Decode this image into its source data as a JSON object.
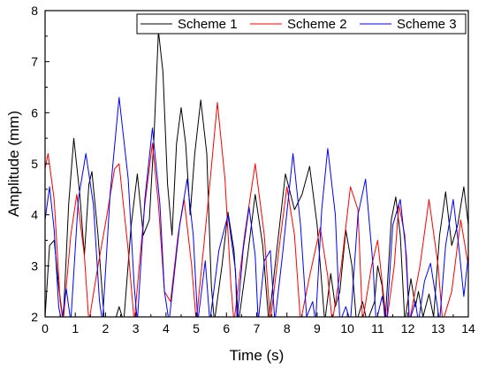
{
  "chart_data": {
    "type": "line",
    "title": "",
    "xlabel": "Time (s)",
    "ylabel": "Amplitude (mm)",
    "xlim": [
      0,
      14
    ],
    "ylim": [
      2,
      8
    ],
    "x_ticks": [
      "0",
      "1",
      "2",
      "3",
      "4",
      "5",
      "6",
      "7",
      "8",
      "9",
      "10",
      "11",
      "12",
      "13",
      "14"
    ],
    "y_ticks": [
      "2",
      "3",
      "4",
      "5",
      "6",
      "7",
      "8"
    ],
    "grid": false,
    "legend": "top-right",
    "series": [
      {
        "name": "Scheme 1",
        "color": "#000000",
        "points": [
          [
            0.0,
            2.0
          ],
          [
            0.15,
            3.4
          ],
          [
            0.3,
            3.5
          ],
          [
            0.45,
            2.6
          ],
          [
            0.6,
            1.9
          ],
          [
            0.78,
            4.2
          ],
          [
            0.95,
            5.5
          ],
          [
            1.15,
            4.4
          ],
          [
            1.3,
            3.2
          ],
          [
            1.45,
            4.6
          ],
          [
            1.55,
            4.85
          ],
          [
            1.75,
            3.6
          ],
          [
            1.95,
            2.0
          ],
          [
            2.3,
            1.9
          ],
          [
            2.45,
            2.2
          ],
          [
            2.6,
            1.9
          ],
          [
            2.85,
            3.8
          ],
          [
            3.05,
            4.8
          ],
          [
            3.25,
            3.6
          ],
          [
            3.45,
            3.9
          ],
          [
            3.6,
            5.5
          ],
          [
            3.75,
            7.6
          ],
          [
            3.9,
            6.8
          ],
          [
            4.05,
            4.6
          ],
          [
            4.2,
            3.6
          ],
          [
            4.35,
            5.4
          ],
          [
            4.5,
            6.1
          ],
          [
            4.65,
            5.4
          ],
          [
            4.8,
            4.0
          ],
          [
            4.95,
            5.2
          ],
          [
            5.15,
            6.25
          ],
          [
            5.35,
            5.2
          ],
          [
            5.5,
            2.6
          ],
          [
            5.6,
            1.9
          ],
          [
            5.85,
            3.0
          ],
          [
            6.05,
            4.05
          ],
          [
            6.25,
            3.3
          ],
          [
            6.4,
            1.9
          ],
          [
            6.7,
            3.2
          ],
          [
            6.95,
            4.4
          ],
          [
            7.2,
            3.4
          ],
          [
            7.4,
            1.9
          ],
          [
            7.7,
            3.5
          ],
          [
            7.95,
            4.8
          ],
          [
            8.25,
            4.1
          ],
          [
            8.5,
            4.4
          ],
          [
            8.75,
            4.95
          ],
          [
            9.0,
            3.8
          ],
          [
            9.25,
            1.9
          ],
          [
            9.45,
            2.85
          ],
          [
            9.6,
            2.2
          ],
          [
            9.75,
            2.5
          ],
          [
            9.95,
            3.7
          ],
          [
            10.15,
            3.0
          ],
          [
            10.3,
            1.9
          ],
          [
            10.5,
            2.3
          ],
          [
            10.65,
            1.9
          ],
          [
            10.9,
            2.3
          ],
          [
            11.0,
            3.0
          ],
          [
            11.15,
            2.6
          ],
          [
            11.25,
            1.9
          ],
          [
            11.45,
            3.9
          ],
          [
            11.6,
            4.35
          ],
          [
            11.75,
            3.6
          ],
          [
            11.9,
            1.9
          ],
          [
            12.1,
            2.75
          ],
          [
            12.25,
            2.2
          ],
          [
            12.35,
            2.5
          ],
          [
            12.5,
            2.0
          ],
          [
            12.7,
            2.45
          ],
          [
            12.85,
            2.0
          ],
          [
            13.05,
            3.6
          ],
          [
            13.25,
            4.45
          ],
          [
            13.45,
            3.4
          ],
          [
            13.65,
            3.8
          ],
          [
            13.85,
            4.55
          ],
          [
            14.0,
            3.8
          ]
        ]
      },
      {
        "name": "Scheme 2",
        "color": "#ff0000",
        "points": [
          [
            0.0,
            4.9
          ],
          [
            0.1,
            5.2
          ],
          [
            0.3,
            4.3
          ],
          [
            0.5,
            2.3
          ],
          [
            0.6,
            1.9
          ],
          [
            0.85,
            3.6
          ],
          [
            1.05,
            4.4
          ],
          [
            1.3,
            3.2
          ],
          [
            1.45,
            1.9
          ],
          [
            1.75,
            3.0
          ],
          [
            2.05,
            4.0
          ],
          [
            2.3,
            4.9
          ],
          [
            2.45,
            5.0
          ],
          [
            2.75,
            3.3
          ],
          [
            2.95,
            1.9
          ],
          [
            3.3,
            4.2
          ],
          [
            3.55,
            5.4
          ],
          [
            3.75,
            4.2
          ],
          [
            3.95,
            2.5
          ],
          [
            4.15,
            2.3
          ],
          [
            4.4,
            3.6
          ],
          [
            4.6,
            4.3
          ],
          [
            4.85,
            3.0
          ],
          [
            5.0,
            1.9
          ],
          [
            5.4,
            4.3
          ],
          [
            5.7,
            6.2
          ],
          [
            5.95,
            4.7
          ],
          [
            6.15,
            2.6
          ],
          [
            6.25,
            1.9
          ],
          [
            6.6,
            3.6
          ],
          [
            6.95,
            5.0
          ],
          [
            7.25,
            3.6
          ],
          [
            7.45,
            1.9
          ],
          [
            7.75,
            3.4
          ],
          [
            8.0,
            4.55
          ],
          [
            8.25,
            3.6
          ],
          [
            8.45,
            1.9
          ],
          [
            8.75,
            2.8
          ],
          [
            9.1,
            3.75
          ],
          [
            9.35,
            2.8
          ],
          [
            9.5,
            1.9
          ],
          [
            9.8,
            3.0
          ],
          [
            10.1,
            4.55
          ],
          [
            10.35,
            4.1
          ],
          [
            10.5,
            1.9
          ],
          [
            10.8,
            3.0
          ],
          [
            11.0,
            3.5
          ],
          [
            11.2,
            2.4
          ],
          [
            11.3,
            1.9
          ],
          [
            11.55,
            3.0
          ],
          [
            11.7,
            4.2
          ],
          [
            11.9,
            3.6
          ],
          [
            12.05,
            1.9
          ],
          [
            12.4,
            3.0
          ],
          [
            12.7,
            4.3
          ],
          [
            13.0,
            3.0
          ],
          [
            13.15,
            1.9
          ],
          [
            13.45,
            2.5
          ],
          [
            13.75,
            3.9
          ],
          [
            14.0,
            3.0
          ]
        ]
      },
      {
        "name": "Scheme 3",
        "color": "#0000ff",
        "points": [
          [
            0.0,
            3.9
          ],
          [
            0.15,
            4.55
          ],
          [
            0.3,
            3.7
          ],
          [
            0.45,
            2.2
          ],
          [
            0.55,
            1.9
          ],
          [
            0.7,
            2.55
          ],
          [
            0.85,
            1.9
          ],
          [
            1.1,
            4.3
          ],
          [
            1.35,
            5.2
          ],
          [
            1.6,
            4.2
          ],
          [
            1.8,
            2.3
          ],
          [
            1.9,
            1.9
          ],
          [
            2.15,
            4.4
          ],
          [
            2.45,
            6.3
          ],
          [
            2.75,
            4.7
          ],
          [
            2.95,
            2.6
          ],
          [
            3.05,
            1.9
          ],
          [
            3.3,
            4.3
          ],
          [
            3.55,
            5.7
          ],
          [
            3.8,
            4.2
          ],
          [
            3.95,
            2.5
          ],
          [
            4.1,
            1.9
          ],
          [
            4.45,
            3.8
          ],
          [
            4.7,
            4.7
          ],
          [
            4.9,
            3.6
          ],
          [
            5.05,
            1.9
          ],
          [
            5.3,
            3.1
          ],
          [
            5.45,
            1.9
          ],
          [
            5.75,
            3.3
          ],
          [
            6.05,
            4.0
          ],
          [
            6.3,
            2.9
          ],
          [
            6.35,
            1.9
          ],
          [
            6.55,
            3.3
          ],
          [
            6.75,
            4.15
          ],
          [
            6.95,
            3.2
          ],
          [
            7.05,
            1.9
          ],
          [
            7.25,
            3.1
          ],
          [
            7.45,
            3.3
          ],
          [
            7.6,
            1.9
          ],
          [
            7.85,
            3.2
          ],
          [
            8.2,
            5.2
          ],
          [
            8.45,
            3.8
          ],
          [
            8.65,
            2.0
          ],
          [
            8.85,
            2.3
          ],
          [
            8.95,
            1.9
          ],
          [
            9.15,
            4.1
          ],
          [
            9.35,
            5.3
          ],
          [
            9.6,
            4.0
          ],
          [
            9.75,
            1.9
          ],
          [
            9.95,
            2.2
          ],
          [
            10.1,
            1.9
          ],
          [
            10.35,
            4.0
          ],
          [
            10.6,
            4.7
          ],
          [
            10.85,
            3.0
          ],
          [
            10.95,
            1.9
          ],
          [
            11.15,
            2.4
          ],
          [
            11.3,
            1.9
          ],
          [
            11.5,
            3.8
          ],
          [
            11.75,
            4.3
          ],
          [
            11.95,
            3.2
          ],
          [
            12.05,
            1.9
          ],
          [
            12.25,
            2.3
          ],
          [
            12.35,
            1.9
          ],
          [
            12.55,
            2.7
          ],
          [
            12.75,
            3.05
          ],
          [
            12.95,
            2.3
          ],
          [
            13.05,
            1.9
          ],
          [
            13.25,
            3.4
          ],
          [
            13.5,
            4.3
          ],
          [
            13.7,
            3.3
          ],
          [
            13.85,
            2.4
          ],
          [
            14.0,
            3.2
          ]
        ]
      }
    ]
  }
}
